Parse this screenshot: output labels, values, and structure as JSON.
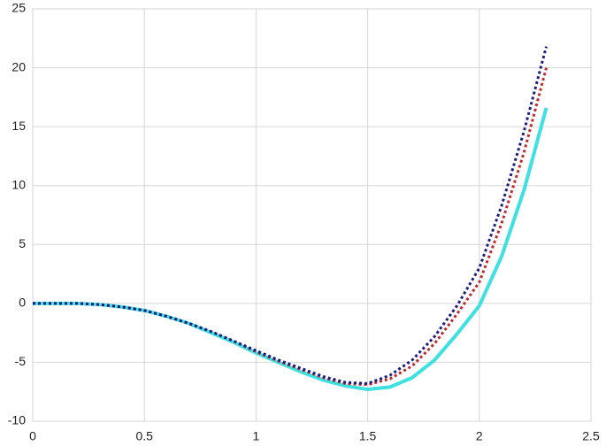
{
  "chart_data": {
    "type": "line",
    "x": [
      0,
      0.1,
      0.2,
      0.3,
      0.4,
      0.5,
      0.6,
      0.7,
      0.8,
      0.9,
      1.0,
      1.1,
      1.2,
      1.3,
      1.4,
      1.5,
      1.6,
      1.7,
      1.8,
      1.9,
      2.0,
      2.1,
      2.2,
      2.3
    ],
    "series": [
      {
        "color": "#3fe0e0",
        "dash": "solid",
        "values": [
          0,
          0,
          0,
          -0.1,
          -0.3,
          -0.6,
          -1.1,
          -1.7,
          -2.5,
          -3.3,
          -4.2,
          -5.0,
          -5.8,
          -6.5,
          -7.0,
          -7.3,
          -7.1,
          -6.3,
          -4.8,
          -2.6,
          -0.2,
          4.0,
          9.6,
          16.6
        ]
      },
      {
        "color": "#c0282d",
        "dash": "dotted",
        "values": [
          0,
          0,
          0,
          -0.1,
          -0.3,
          -0.6,
          -1.1,
          -1.7,
          -2.4,
          -3.2,
          -4.1,
          -4.9,
          -5.6,
          -6.3,
          -6.8,
          -6.9,
          -6.4,
          -5.3,
          -3.4,
          -0.9,
          1.8,
          6.8,
          12.8,
          20.0
        ]
      },
      {
        "color": "#1c1c80",
        "dash": "dotted",
        "values": [
          0,
          0,
          0,
          -0.1,
          -0.3,
          -0.6,
          -1.1,
          -1.7,
          -2.4,
          -3.2,
          -4.0,
          -4.8,
          -5.5,
          -6.2,
          -6.7,
          -6.8,
          -6.1,
          -4.8,
          -2.8,
          -0.2,
          3.0,
          8.3,
          14.6,
          21.8
        ]
      }
    ],
    "xlim": [
      0,
      2.5
    ],
    "xticks": [
      0,
      0.5,
      1,
      1.5,
      2,
      2.5
    ],
    "ylim": [
      -10,
      25
    ],
    "yticks": [
      -10,
      -5,
      0,
      5,
      10,
      15,
      20,
      25
    ],
    "grid": true
  }
}
